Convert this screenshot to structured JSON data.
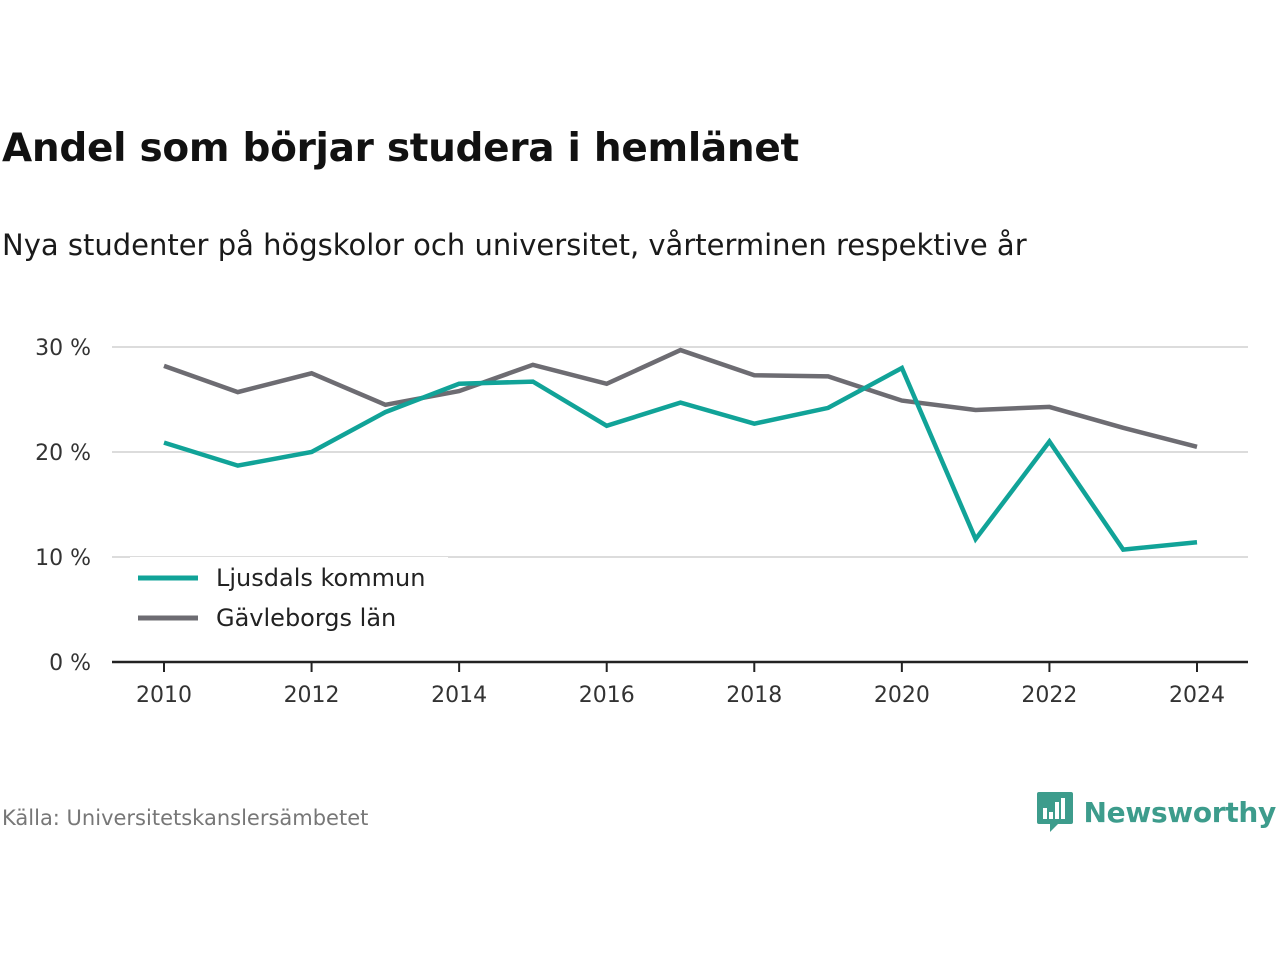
{
  "header": {
    "title": "Andel som börjar studera i hemlänet",
    "subtitle": "Nya studenter på högskolor och universitet, vårterminen respektive år"
  },
  "chart_data": {
    "type": "line",
    "x": [
      2010,
      2011,
      2012,
      2013,
      2014,
      2015,
      2016,
      2017,
      2018,
      2019,
      2020,
      2021,
      2022,
      2023,
      2024
    ],
    "x_tick_labels": [
      "2010",
      "2012",
      "2014",
      "2016",
      "2018",
      "2020",
      "2022",
      "2024"
    ],
    "y_tick_labels": [
      "0 %",
      "10 %",
      "20 %",
      "30 %"
    ],
    "y_ticks": [
      0,
      10,
      20,
      30
    ],
    "ylim": [
      0,
      30
    ],
    "xlim": [
      2010,
      2024
    ],
    "grid": true,
    "legend_position": "bottom-left",
    "series": [
      {
        "name": "Ljusdals kommun",
        "color": "#11a398",
        "values": [
          20.9,
          18.7,
          20.0,
          23.8,
          26.5,
          26.7,
          22.5,
          24.7,
          22.7,
          24.2,
          28.0,
          11.7,
          21.0,
          10.7,
          11.4
        ]
      },
      {
        "name": "Gävleborgs län",
        "color": "#6d6c72",
        "values": [
          28.2,
          25.7,
          27.5,
          24.5,
          25.8,
          28.3,
          26.5,
          29.7,
          27.3,
          27.2,
          24.9,
          24.0,
          24.3,
          22.3,
          20.5
        ]
      }
    ]
  },
  "footer": {
    "source": "Källa: Universitetskanslersämbetet",
    "brand": "Newsworthy",
    "brand_icon": "bar-chart-speech-bubble-icon",
    "brand_color": "#3d9c8c"
  }
}
